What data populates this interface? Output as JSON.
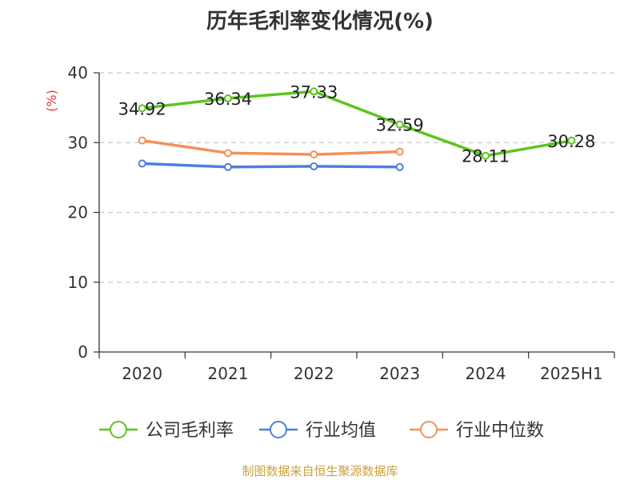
{
  "title": "历年毛利率变化情况(%)",
  "source": "制图数据来自恒生聚源数据库",
  "chart_data": {
    "type": "line",
    "title": "历年毛利率变化情况(%)",
    "ylabel": "(%)",
    "ylabel_color": "#e8373a",
    "categories": [
      "2020",
      "2021",
      "2022",
      "2023",
      "2024",
      "2025H1"
    ],
    "ylim": [
      0,
      40
    ],
    "yticks": [
      0,
      10,
      20,
      30,
      40
    ],
    "grid": "horizontal-dashed",
    "legend_position": "bottom",
    "series": [
      {
        "name": "公司毛利率",
        "color": "#5dc41f",
        "values": [
          34.92,
          36.34,
          37.33,
          32.59,
          28.11,
          30.28
        ],
        "labels": true
      },
      {
        "name": "行业均值",
        "color": "#4d7fdb",
        "values": [
          27.0,
          26.5,
          26.6,
          26.5,
          null,
          null
        ],
        "labels": false
      },
      {
        "name": "行业中位数",
        "color": "#f4915a",
        "values": [
          30.3,
          28.5,
          28.3,
          28.7,
          null,
          null
        ],
        "labels": false
      }
    ]
  }
}
